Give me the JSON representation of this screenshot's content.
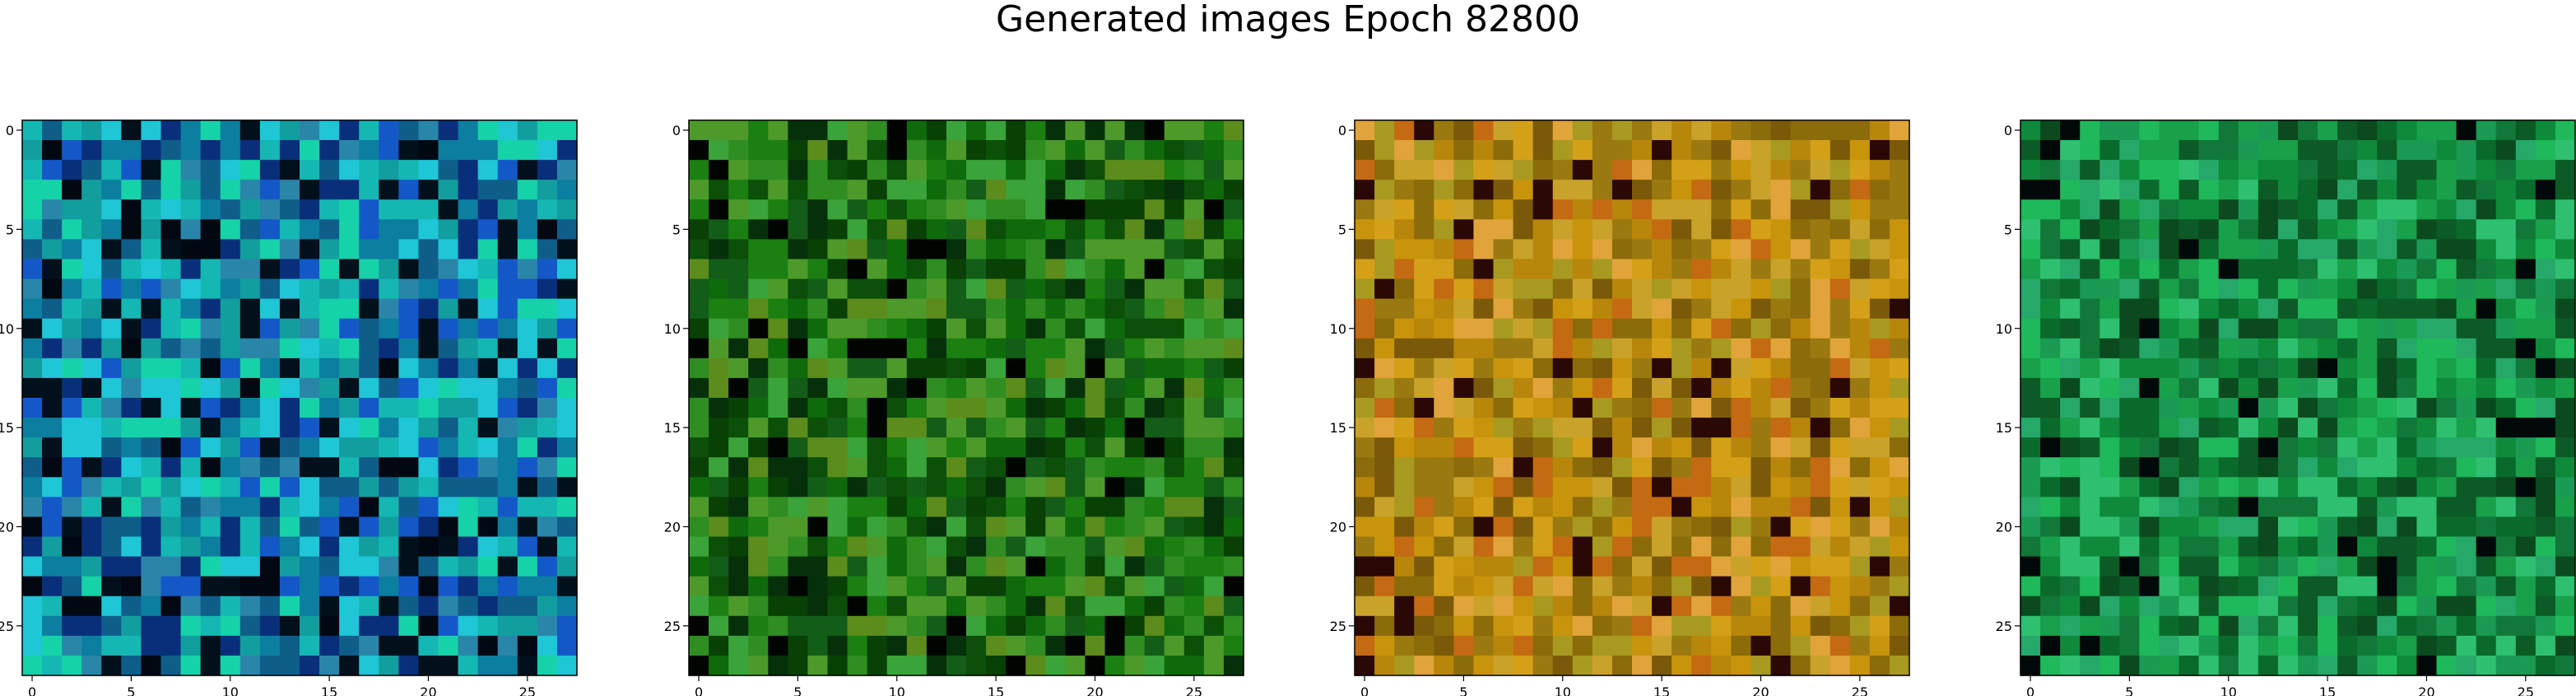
{
  "figure": {
    "title": "Generated images Epoch 82800"
  },
  "chart_data": [
    {
      "type": "heatmap",
      "title": "",
      "grid_size": [
        28,
        28
      ],
      "palette": [
        "#0c7ea0",
        "#129e9e",
        "#15b7b3",
        "#0f5e8a",
        "#1ec6d6",
        "#1458c8",
        "#0a2f7a",
        "#02101c",
        "#2a86a8",
        "#16d2a8"
      ],
      "dark_color": "#020812",
      "x_ticks": [
        0,
        5,
        10,
        15,
        20,
        25
      ],
      "y_ticks": [
        0,
        5,
        10,
        15,
        20,
        25
      ],
      "xlim": [
        -0.5,
        27.5
      ],
      "ylim": [
        27.5,
        -0.5
      ]
    },
    {
      "type": "heatmap",
      "title": "",
      "grid_size": [
        28,
        28
      ],
      "palette": [
        "#0f6a0c",
        "#1b7f12",
        "#0b4f08",
        "#2f8d22",
        "#4d9a2a",
        "#084005",
        "#3aa33a",
        "#5c8c1c",
        "#06300a",
        "#135d18"
      ],
      "dark_color": "#010501",
      "x_ticks": [
        0,
        5,
        10,
        15,
        20,
        25
      ],
      "y_ticks": [
        0,
        5,
        10,
        15,
        20,
        25
      ],
      "xlim": [
        -0.5,
        27.5
      ],
      "ylim": [
        27.5,
        -0.5
      ]
    },
    {
      "type": "heatmap",
      "title": "",
      "grid_size": [
        28,
        28
      ],
      "palette": [
        "#b8860b",
        "#c8940c",
        "#9a7a10",
        "#d4a017",
        "#8b6b0a",
        "#c46a12",
        "#a89a20",
        "#e0a43a",
        "#7a5a08",
        "#c9a22a"
      ],
      "dark_color": "#2a0805",
      "x_ticks": [
        0,
        5,
        10,
        15,
        20,
        25
      ],
      "y_ticks": [
        0,
        5,
        10,
        15,
        20,
        25
      ],
      "xlim": [
        -0.5,
        27.5
      ],
      "ylim": [
        27.5,
        -0.5
      ]
    },
    {
      "type": "heatmap",
      "title": "",
      "grid_size": [
        28,
        28
      ],
      "palette": [
        "#0e8a3a",
        "#18a04a",
        "#0a6a2c",
        "#1fb85a",
        "#12783a",
        "#0c5a26",
        "#26a86a",
        "#0a4a1e",
        "#1a9a52",
        "#2ec070"
      ],
      "dark_color": "#01080a",
      "x_ticks": [
        0,
        5,
        10,
        15,
        20,
        25
      ],
      "y_ticks": [
        0,
        5,
        10,
        15,
        20,
        25
      ],
      "xlim": [
        -0.5,
        27.5
      ],
      "ylim": [
        27.5,
        -0.5
      ]
    }
  ]
}
